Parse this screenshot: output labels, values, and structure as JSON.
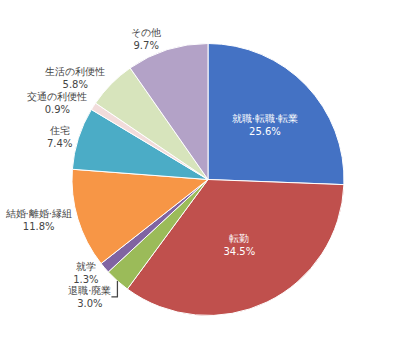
{
  "chart_data": {
    "type": "pie",
    "categories": [
      "就職·転職·転業",
      "転勤",
      "退職·廃業",
      "就学",
      "結婚·離婚·縁組",
      "住宅",
      "交通の利便性",
      "生活の利便性",
      "その他"
    ],
    "values": [
      25.6,
      34.5,
      3.0,
      1.3,
      11.8,
      7.4,
      0.9,
      5.8,
      9.7
    ],
    "value_labels": [
      "25.6%",
      "34.5%",
      "3.0%",
      "1.3%",
      "11.8%",
      "7.4%",
      "0.9%",
      "5.8%",
      "9.7%"
    ],
    "colors": [
      "#4472C4",
      "#C0504D",
      "#9BBB59",
      "#8064A2",
      "#F79646",
      "#4BACC6",
      "#F2DCDB",
      "#D7E4BC",
      "#B3A2C7"
    ],
    "data_labels": true
  }
}
